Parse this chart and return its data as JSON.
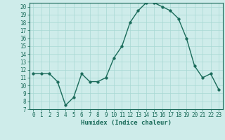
{
  "xlabel": "Humidex (Indice chaleur)",
  "x": [
    0,
    1,
    2,
    3,
    4,
    5,
    6,
    7,
    8,
    9,
    10,
    11,
    12,
    13,
    14,
    15,
    16,
    17,
    18,
    19,
    20,
    21,
    22,
    23
  ],
  "y": [
    11.5,
    11.5,
    11.5,
    10.5,
    7.5,
    8.5,
    11.5,
    10.5,
    10.5,
    11.0,
    13.5,
    15.0,
    18.0,
    19.5,
    20.5,
    20.5,
    20.0,
    19.5,
    18.5,
    16.0,
    12.5,
    11.0,
    11.5,
    9.5
  ],
  "line_color": "#1a6b5a",
  "marker_size": 2.5,
  "line_width": 1.0,
  "bg_color": "#ceecea",
  "grid_color": "#a8d8d4",
  "xlim": [
    -0.5,
    23.5
  ],
  "ylim": [
    7,
    20.5
  ],
  "yticks": [
    7,
    8,
    9,
    10,
    11,
    12,
    13,
    14,
    15,
    16,
    17,
    18,
    19,
    20
  ],
  "xticks": [
    0,
    1,
    2,
    3,
    4,
    5,
    6,
    7,
    8,
    9,
    10,
    11,
    12,
    13,
    14,
    15,
    16,
    17,
    18,
    19,
    20,
    21,
    22,
    23
  ],
  "tick_fontsize": 5.5,
  "xlabel_fontsize": 6.5,
  "axis_color": "#1a6b5a"
}
